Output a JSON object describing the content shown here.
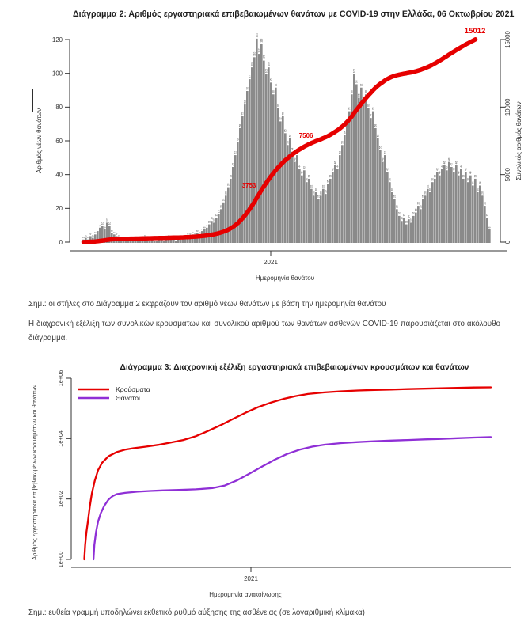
{
  "colors": {
    "bar": "#8a8a8a",
    "bar_label": "#4f4f4f",
    "red": "#e60000",
    "purple": "#8f2fd6",
    "axis": "#333333",
    "annotation_red": "#e60000"
  },
  "chart2": {
    "title": "Διάγραμμα 2: Αριθμός εργαστηριακά επιβεβαιωμένων θανάτων με COVID-19 στην Ελλάδα, 06 Οκτωβρίου 2021",
    "y_left_label": "Αριθμός νέων θανάτων",
    "y_right_label": "Συνολικός αριθμός θανάτων",
    "x_tick": "2021",
    "x_label": "Ημερομηνία θανάτου"
  },
  "notes": {
    "note1": "Σημ.: οι στήλες στο Διάγραμμα 2 εκφράζουν τον αριθμό νέων θανάτων με βάση την ημερομηνία θανάτου",
    "paragraph": "Η διαχρονική εξέλιξη των συνολικών κρουσμάτων και συνολικού αριθμού των θανάτων ασθενών COVID-19 παρουσιάζεται στο ακόλουθο διάγραμμα.",
    "note2": "Σημ.: ευθεία γραμμή υποδηλώνει εκθετικό ρυθμό αύξησης της ασθένειας (σε λογαριθμική κλίμακα)"
  },
  "chart3": {
    "title": "Διάγραμμα 3: Διαχρονική εξέλιξη εργαστηριακά επιβεβαιωμένων κρουσμάτων και θανάτων",
    "y_label": "Αριθμός εργαστηριακά επιβεβαιωμένων κρουσμάτων και θανάτων",
    "x_tick": "2021",
    "x_label": "Ημερομηνία ανακοίνωσης",
    "legend": [
      {
        "label": "Κρούσματα",
        "color": "#e60000"
      },
      {
        "label": "Θάνατοι",
        "color": "#8f2fd6"
      }
    ]
  },
  "chart_data": [
    {
      "type": "bar",
      "title": "Διάγραμμα 2: Αριθμός εργαστηριακά επιβεβαιωμένων θανάτων με COVID-19 στην Ελλάδα, 06 Οκτωβρίου 2021",
      "xlabel": "Ημερομηνία θανάτου",
      "x_tick_labels": [
        "2021"
      ],
      "ylabel": "Αριθμός νέων θανάτων",
      "ylim": [
        0,
        120
      ],
      "yticks_left": [
        0,
        20,
        40,
        60,
        80,
        100,
        120
      ],
      "ylabel_right": "Συνολικός αριθμός θανάτων",
      "ylim_right": [
        0,
        15000
      ],
      "yticks_right": [
        0,
        5000,
        10000,
        15000
      ],
      "values": [
        2,
        3,
        2,
        4,
        3,
        5,
        7,
        9,
        10,
        8,
        12,
        10,
        6,
        5,
        4,
        3,
        2,
        2,
        2,
        1,
        2,
        1,
        1,
        2,
        1,
        2,
        3,
        2,
        1,
        2,
        1,
        1,
        2,
        2,
        1,
        2,
        3,
        2,
        2,
        1,
        2,
        2,
        3,
        3,
        4,
        4,
        5,
        4,
        6,
        5,
        7,
        8,
        9,
        11,
        13,
        12,
        15,
        17,
        20,
        24,
        28,
        33,
        38,
        45,
        52,
        60,
        68,
        75,
        82,
        90,
        97,
        104,
        110,
        121,
        112,
        118,
        108,
        100,
        104,
        95,
        88,
        92,
        80,
        72,
        75,
        65,
        58,
        62,
        54,
        48,
        52,
        44,
        40,
        43,
        36,
        38,
        32,
        28,
        30,
        26,
        28,
        32,
        29,
        35,
        38,
        42,
        46,
        44,
        52,
        58,
        64,
        70,
        78,
        88,
        100,
        94,
        86,
        92,
        84,
        88,
        80,
        74,
        78,
        68,
        62,
        55,
        48,
        52,
        42,
        36,
        30,
        26,
        20,
        16,
        13,
        15,
        11,
        14,
        12,
        16,
        18,
        22,
        20,
        26,
        28,
        32,
        30,
        36,
        38,
        42,
        40,
        44,
        46,
        43,
        48,
        45,
        42,
        46,
        40,
        44,
        38,
        42,
        36,
        40,
        34,
        38,
        30,
        34,
        28,
        22,
        15,
        8
      ],
      "cumulative_line": {
        "name": "Συνολικός αριθμός θανάτων",
        "final_value": 15012,
        "milestone_annotations": [
          {
            "text": "3753",
            "value": 3753
          },
          {
            "text": "7506",
            "value": 7506
          }
        ],
        "end_annotation": "15012"
      }
    },
    {
      "type": "line",
      "yscale": "log",
      "title": "Διάγραμμα 3: Διαχρονική εξέλιξη εργαστηριακά επιβεβαιωμένων κρουσμάτων και θανάτων",
      "xlabel": "Ημερομηνία ανακοίνωσης",
      "x_tick_labels": [
        "2021"
      ],
      "ylabel": "Αριθμός εργαστηριακά επιβεβαιωμένων κρουσμάτων και θανάτων",
      "yticks": [
        {
          "label": "1e+00",
          "value": 1
        },
        {
          "label": "1e+02",
          "value": 100
        },
        {
          "label": "1e+04",
          "value": 10000
        },
        {
          "label": "1e+06",
          "value": 1000000
        }
      ],
      "legend_position": "top-left",
      "series": [
        {
          "name": "Κρούσματα",
          "color": "#e60000",
          "points": [
            [
              0.022,
              1
            ],
            [
              0.024,
              3
            ],
            [
              0.027,
              8
            ],
            [
              0.031,
              20
            ],
            [
              0.035,
              55
            ],
            [
              0.04,
              150
            ],
            [
              0.047,
              400
            ],
            [
              0.055,
              900
            ],
            [
              0.065,
              1600
            ],
            [
              0.08,
              2600
            ],
            [
              0.1,
              3600
            ],
            [
              0.12,
              4300
            ],
            [
              0.14,
              4800
            ],
            [
              0.17,
              5400
            ],
            [
              0.2,
              6200
            ],
            [
              0.23,
              7400
            ],
            [
              0.26,
              9000
            ],
            [
              0.29,
              12000
            ],
            [
              0.32,
              18000
            ],
            [
              0.35,
              28000
            ],
            [
              0.38,
              45000
            ],
            [
              0.41,
              72000
            ],
            [
              0.44,
              110000
            ],
            [
              0.47,
              155000
            ],
            [
              0.5,
              205000
            ],
            [
              0.53,
              255000
            ],
            [
              0.56,
              300000
            ],
            [
              0.6,
              340000
            ],
            [
              0.64,
              370000
            ],
            [
              0.68,
              392000
            ],
            [
              0.72,
              408000
            ],
            [
              0.76,
              422000
            ],
            [
              0.8,
              436000
            ],
            [
              0.84,
              450000
            ],
            [
              0.88,
              465000
            ],
            [
              0.92,
              480000
            ],
            [
              0.96,
              492000
            ],
            [
              1.0,
              500000
            ]
          ]
        },
        {
          "name": "Θάνατοι",
          "color": "#8f2fd6",
          "points": [
            [
              0.044,
              1
            ],
            [
              0.046,
              3
            ],
            [
              0.05,
              8
            ],
            [
              0.055,
              18
            ],
            [
              0.062,
              35
            ],
            [
              0.07,
              60
            ],
            [
              0.08,
              95
            ],
            [
              0.09,
              125
            ],
            [
              0.1,
              145
            ],
            [
              0.12,
              160
            ],
            [
              0.15,
              175
            ],
            [
              0.18,
              185
            ],
            [
              0.21,
              192
            ],
            [
              0.25,
              200
            ],
            [
              0.29,
              210
            ],
            [
              0.33,
              230
            ],
            [
              0.36,
              280
            ],
            [
              0.39,
              420
            ],
            [
              0.42,
              700
            ],
            [
              0.45,
              1200
            ],
            [
              0.48,
              2000
            ],
            [
              0.51,
              3100
            ],
            [
              0.54,
              4300
            ],
            [
              0.57,
              5400
            ],
            [
              0.6,
              6300
            ],
            [
              0.64,
              7100
            ],
            [
              0.68,
              7700
            ],
            [
              0.72,
              8200
            ],
            [
              0.76,
              8600
            ],
            [
              0.8,
              9000
            ],
            [
              0.84,
              9400
            ],
            [
              0.88,
              9800
            ],
            [
              0.92,
              10300
            ],
            [
              0.96,
              10800
            ],
            [
              1.0,
              11200
            ]
          ]
        }
      ]
    }
  ]
}
